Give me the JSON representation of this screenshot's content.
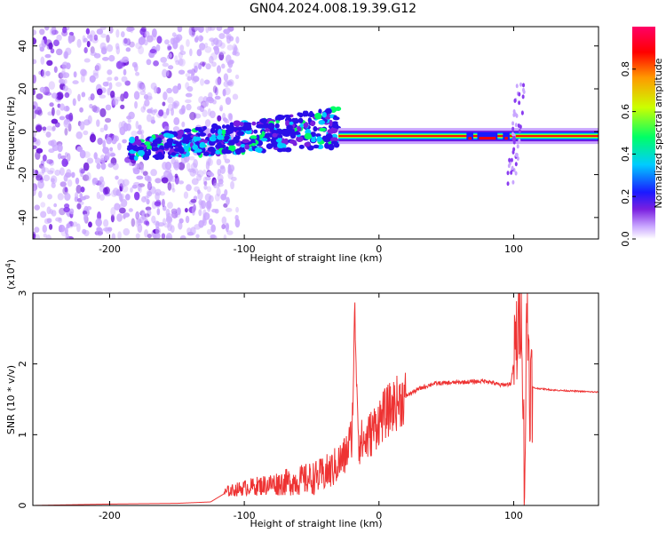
{
  "title": "GN04.2024.008.19.39.G12",
  "chart_data": [
    {
      "type": "heatmap",
      "panel": "spectrogram",
      "xlabel": "Height of straight line (km)",
      "ylabel": "Frequency (Hz)",
      "xlim": [
        -257,
        163
      ],
      "ylim": [
        -50,
        49
      ],
      "xticks": [
        -200,
        -100,
        0,
        100
      ],
      "yticks": [
        -40,
        -20,
        0,
        20,
        40
      ],
      "colorbar": {
        "label": "Normalized spectral amplitude",
        "range": [
          0.0,
          1.0
        ],
        "ticks": [
          "0.0",
          "0.2",
          "0.4",
          "0.6",
          "0.8"
        ],
        "colormap": [
          "#ffffff",
          "#c9a6ff",
          "#7a1fe0",
          "#1a1aff",
          "#00ccff",
          "#00ff66",
          "#ccff00",
          "#ff9900",
          "#ff0000",
          "#ff0066"
        ]
      },
      "features": {
        "noise_region_x": [
          -257,
          -125
        ],
        "scattered_band_x": [
          -185,
          -30
        ],
        "scattered_band_center_hz_at_start": -8,
        "scattered_band_center_hz_at_end": 2,
        "steady_line_x": [
          -30,
          163
        ],
        "steady_line_freq_hz": -2,
        "dropout_segments_x": [
          [
            65,
            70
          ],
          [
            73,
            88
          ],
          [
            92,
            97
          ]
        ],
        "vertical_spike_x": 102,
        "vertical_spike_freq_range_hz": [
          -25,
          22
        ]
      }
    },
    {
      "type": "line",
      "panel": "snr",
      "xlabel": "Height of straight line (km)",
      "ylabel": "SNR (10 * v/v)",
      "multiplier": "(x10",
      "multiplier_exp": "4",
      "multiplier_close": ")",
      "xlim": [
        -257,
        163
      ],
      "ylim": [
        0,
        3
      ],
      "xticks": [
        -200,
        -100,
        0,
        100
      ],
      "yticks": [
        0,
        1,
        2,
        3
      ],
      "series": [
        {
          "color": "#ee3333",
          "x": [
            -257,
            -200,
            -150,
            -125,
            -112,
            -100,
            -80,
            -60,
            -45,
            -35,
            -25,
            -20,
            -18,
            -15,
            -10,
            0,
            10,
            20,
            30,
            40,
            60,
            80,
            90,
            98,
            104,
            106,
            108,
            110,
            112,
            115,
            130,
            163
          ],
          "y": [
            0.0,
            0.02,
            0.03,
            0.05,
            0.2,
            0.25,
            0.3,
            0.35,
            0.4,
            0.5,
            0.7,
            1.0,
            2.7,
            0.9,
            0.9,
            1.2,
            1.4,
            1.55,
            1.65,
            1.72,
            1.74,
            1.76,
            1.7,
            1.72,
            2.6,
            2.98,
            0.2,
            2.95,
            1.7,
            1.66,
            1.63,
            1.6
          ]
        }
      ]
    }
  ]
}
